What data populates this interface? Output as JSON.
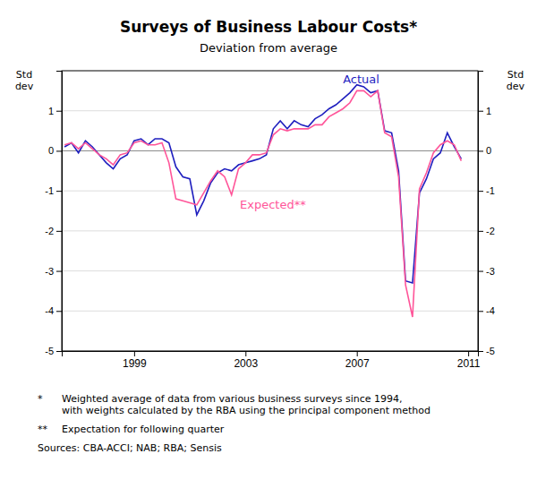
{
  "chart_data": {
    "type": "line",
    "title": "Surveys of Business Labour Costs*",
    "subtitle": "Deviation from average",
    "ylabel": "Std\ndev",
    "y2label": "Std\ndev",
    "xlim": [
      1996.4,
      2011.35
    ],
    "xticks": [
      1999,
      2003,
      2007,
      2011
    ],
    "ylim": [
      -5,
      2
    ],
    "yticks": [
      -5,
      -4,
      -3,
      -2,
      -1,
      0,
      1
    ],
    "y2lim": [
      -5,
      2
    ],
    "y2ticks": [
      -5,
      -4,
      -3,
      -2,
      -1,
      0,
      1
    ],
    "grid": true,
    "x": [
      1996.5,
      1996.75,
      1997.0,
      1997.25,
      1997.5,
      1997.75,
      1998.0,
      1998.25,
      1998.5,
      1998.75,
      1999.0,
      1999.25,
      1999.5,
      1999.75,
      2000.0,
      2000.25,
      2000.5,
      2000.75,
      2001.0,
      2001.25,
      2001.5,
      2001.75,
      2002.0,
      2002.25,
      2002.5,
      2002.75,
      2003.0,
      2003.25,
      2003.5,
      2003.75,
      2004.0,
      2004.25,
      2004.5,
      2004.75,
      2005.0,
      2005.25,
      2005.5,
      2005.75,
      2006.0,
      2006.25,
      2006.5,
      2006.75,
      2007.0,
      2007.25,
      2007.5,
      2007.75,
      2008.0,
      2008.25,
      2008.5,
      2008.75,
      2009.0,
      2009.25,
      2009.5,
      2009.75,
      2010.0,
      2010.25,
      2010.5,
      2010.75
    ],
    "series": [
      {
        "color": "#1f1fbf",
        "values": [
          0.1,
          0.2,
          -0.05,
          0.25,
          0.1,
          -0.1,
          -0.3,
          -0.45,
          -0.2,
          -0.1,
          0.25,
          0.3,
          0.15,
          0.3,
          0.3,
          0.2,
          -0.4,
          -0.65,
          -0.7,
          -1.6,
          -1.25,
          -0.8,
          -0.55,
          -0.45,
          -0.5,
          -0.35,
          -0.3,
          -0.25,
          -0.2,
          -0.1,
          0.55,
          0.75,
          0.55,
          0.75,
          0.65,
          0.6,
          0.8,
          0.9,
          1.05,
          1.15,
          1.3,
          1.45,
          1.65,
          1.6,
          1.45,
          1.5,
          0.5,
          0.45,
          -0.5,
          -3.25,
          -3.3,
          -1.05,
          -0.7,
          -0.2,
          -0.05,
          0.45,
          0.1,
          -0.2
        ]
      },
      {
        "color": "#ff5599",
        "values": [
          0.15,
          0.2,
          0.05,
          0.2,
          0.05,
          -0.1,
          -0.2,
          -0.35,
          -0.1,
          -0.05,
          0.2,
          0.25,
          0.15,
          0.15,
          0.2,
          -0.3,
          -1.2,
          -1.25,
          -1.3,
          -1.35,
          -1.05,
          -0.75,
          -0.5,
          -0.65,
          -1.1,
          -0.45,
          -0.3,
          -0.1,
          -0.1,
          -0.05,
          0.4,
          0.55,
          0.5,
          0.55,
          0.55,
          0.55,
          0.65,
          0.65,
          0.85,
          0.95,
          1.05,
          1.2,
          1.5,
          1.5,
          1.35,
          1.5,
          0.45,
          0.35,
          -0.65,
          -3.35,
          -4.15,
          -0.95,
          -0.55,
          -0.05,
          0.15,
          0.25,
          0.15,
          -0.25
        ]
      }
    ],
    "annotations": [
      {
        "text": "Actual",
        "x": 2006.5,
        "y": 1.68,
        "color": "#1f1fbf"
      },
      {
        "text": "Expected**",
        "x": 2002.8,
        "y": -1.45,
        "color": "#ff5599"
      }
    ],
    "footnotes": [
      {
        "bullet": "*",
        "text": "Weighted average of data from various business surveys since 1994,\nwith weights calculated by the RBA using the principal component method"
      },
      {
        "bullet": "**",
        "text": "Expectation for following quarter"
      },
      {
        "text": "Sources: CBA-ACCI; NAB; RBA; Sensis"
      }
    ]
  }
}
